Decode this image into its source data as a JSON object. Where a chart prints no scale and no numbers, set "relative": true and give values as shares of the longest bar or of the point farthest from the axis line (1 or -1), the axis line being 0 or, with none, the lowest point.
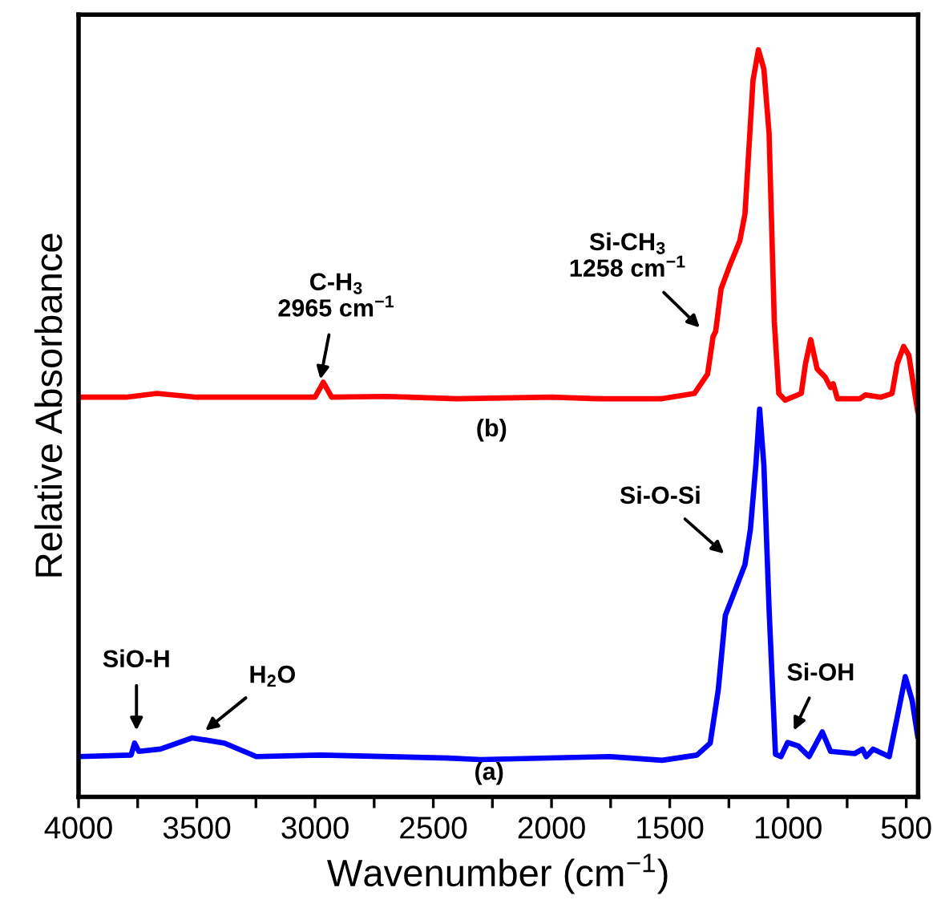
{
  "chart_data": {
    "type": "line",
    "relative": true,
    "xlabel": "Wavenumber (cm$^{−1}$)",
    "ylabel": "Relative Absorbance",
    "xlim": [
      4000,
      450
    ],
    "xticks": [
      4000,
      {
        "value": 3750,
        "label": null
      },
      3500,
      {
        "value": 3250,
        "label": null
      },
      3000,
      {
        "value": 2750,
        "label": null
      },
      2500,
      {
        "value": 2250,
        "label": null
      },
      2000,
      {
        "value": 1750,
        "label": null
      },
      1500,
      {
        "value": 1250,
        "label": null
      },
      1000,
      {
        "value": 750,
        "label": null
      },
      500
    ],
    "tick_labels": "x",
    "grid": false,
    "legend": false,
    "marker": "none",
    "line_style": "solid",
    "series": [
      {
        "color": "#ff0000",
        "x": [
          4000,
          3800,
          3668,
          3500,
          3200,
          3000,
          2965,
          2930,
          2700,
          2400,
          2000,
          1800,
          1532,
          1396,
          1340,
          1317,
          1306,
          1283,
          1249,
          1204,
          1182,
          1148,
          1125,
          1102,
          1080,
          1058,
          1039,
          1012,
          944,
          926,
          904,
          877,
          843,
          820,
          809,
          791,
          696,
          673,
          606,
          560,
          538,
          511,
          489,
          466,
          452
        ],
        "values": [
          0.535,
          0.535,
          0.54,
          0.535,
          0.535,
          0.535,
          0.555,
          0.535,
          0.536,
          0.533,
          0.535,
          0.533,
          0.533,
          0.54,
          0.566,
          0.616,
          0.623,
          0.68,
          0.709,
          0.744,
          0.78,
          0.959,
          1.0,
          0.974,
          0.888,
          0.637,
          0.54,
          0.531,
          0.54,
          0.58,
          0.612,
          0.573,
          0.562,
          0.548,
          0.553,
          0.533,
          0.533,
          0.538,
          0.535,
          0.54,
          0.58,
          0.603,
          0.591,
          0.544,
          0.517
        ]
      },
      {
        "color": "#0000ff",
        "x": [
          4000,
          3778,
          3763,
          3745,
          3654,
          3519,
          3383,
          3248,
          2977,
          2435,
          2300,
          1757,
          1532,
          1385,
          1329,
          1295,
          1265,
          1238,
          1182,
          1159,
          1136,
          1120,
          1102,
          1080,
          1053,
          1030,
          1001,
          956,
          911,
          855,
          820,
          718,
          685,
          669,
          640,
          572,
          538,
          504,
          475,
          452
        ],
        "values": [
          0.054,
          0.056,
          0.072,
          0.061,
          0.064,
          0.079,
          0.072,
          0.054,
          0.056,
          0.052,
          0.05,
          0.054,
          0.049,
          0.056,
          0.072,
          0.143,
          0.243,
          0.265,
          0.311,
          0.358,
          0.444,
          0.519,
          0.444,
          0.251,
          0.057,
          0.054,
          0.073,
          0.068,
          0.054,
          0.087,
          0.061,
          0.058,
          0.064,
          0.054,
          0.064,
          0.054,
          0.107,
          0.161,
          0.129,
          0.082
        ]
      }
    ],
    "annotations": [
      "C-H$_{3}$\n2965 cm$^{−1}$",
      "Si-CH$_{3}$\n1258 cm$^{−1}$",
      "(b)",
      "Si-O-Si",
      "SiO-H",
      "H$_{2}$O",
      "Si-OH",
      "(a)"
    ]
  }
}
